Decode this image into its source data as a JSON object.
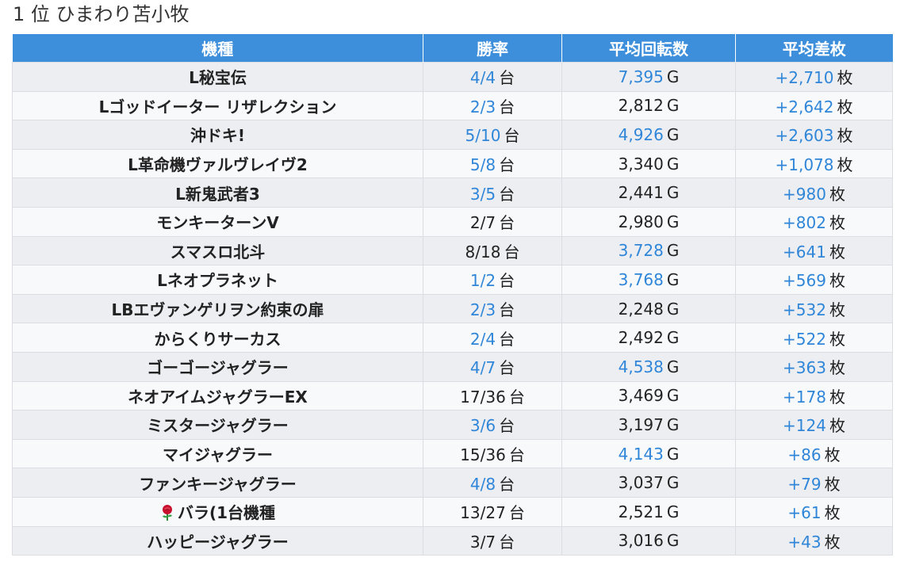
{
  "page_title": "1 位 ひまわり苫小牧",
  "colors": {
    "header_bg": "#3d8fdc",
    "highlight": "#2f86d8",
    "row_odd": "#eceef2",
    "row_even": "#f8f9fb"
  },
  "table": {
    "headers": [
      "機種",
      "勝率",
      "平均回転数",
      "平均差枚"
    ],
    "units": {
      "win_rate": "台",
      "spins": "G",
      "diff": "枚"
    },
    "rows": [
      {
        "machine": "L秘宝伝",
        "win_rate": "4/4",
        "win_rate_hl": true,
        "spins": "7,395",
        "spins_hl": true,
        "diff": "+2,710",
        "diff_hl": true
      },
      {
        "machine": "Lゴッドイーター リザレクション",
        "win_rate": "2/3",
        "win_rate_hl": true,
        "spins": "2,812",
        "spins_hl": false,
        "diff": "+2,642",
        "diff_hl": true
      },
      {
        "machine": "沖ドキ!",
        "win_rate": "5/10",
        "win_rate_hl": true,
        "spins": "4,926",
        "spins_hl": true,
        "diff": "+2,603",
        "diff_hl": true
      },
      {
        "machine": "L革命機ヴァルヴレイヴ2",
        "win_rate": "5/8",
        "win_rate_hl": true,
        "spins": "3,340",
        "spins_hl": false,
        "diff": "+1,078",
        "diff_hl": true
      },
      {
        "machine": "L新鬼武者3",
        "win_rate": "3/5",
        "win_rate_hl": true,
        "spins": "2,441",
        "spins_hl": false,
        "diff": "+980",
        "diff_hl": true
      },
      {
        "machine": "モンキーターンV",
        "win_rate": "2/7",
        "win_rate_hl": false,
        "spins": "2,980",
        "spins_hl": false,
        "diff": "+802",
        "diff_hl": true
      },
      {
        "machine": "スマスロ北斗",
        "win_rate": "8/18",
        "win_rate_hl": false,
        "spins": "3,728",
        "spins_hl": true,
        "diff": "+641",
        "diff_hl": true
      },
      {
        "machine": "Lネオプラネット",
        "win_rate": "1/2",
        "win_rate_hl": true,
        "spins": "3,768",
        "spins_hl": true,
        "diff": "+569",
        "diff_hl": true
      },
      {
        "machine": "LBエヴァンゲリヲン約束の扉",
        "win_rate": "2/3",
        "win_rate_hl": true,
        "spins": "2,248",
        "spins_hl": false,
        "diff": "+532",
        "diff_hl": true
      },
      {
        "machine": "からくりサーカス",
        "win_rate": "2/4",
        "win_rate_hl": true,
        "spins": "2,492",
        "spins_hl": false,
        "diff": "+522",
        "diff_hl": true
      },
      {
        "machine": "ゴーゴージャグラー",
        "win_rate": "4/7",
        "win_rate_hl": true,
        "spins": "4,538",
        "spins_hl": true,
        "diff": "+363",
        "diff_hl": true
      },
      {
        "machine": "ネオアイムジャグラーEX",
        "win_rate": "17/36",
        "win_rate_hl": false,
        "spins": "3,469",
        "spins_hl": false,
        "diff": "+178",
        "diff_hl": true
      },
      {
        "machine": "ミスタージャグラー",
        "win_rate": "3/6",
        "win_rate_hl": true,
        "spins": "3,197",
        "spins_hl": false,
        "diff": "+124",
        "diff_hl": true
      },
      {
        "machine": "マイジャグラー",
        "win_rate": "15/36",
        "win_rate_hl": false,
        "spins": "4,143",
        "spins_hl": true,
        "diff": "+86",
        "diff_hl": true
      },
      {
        "machine": "ファンキージャグラー",
        "win_rate": "4/8",
        "win_rate_hl": true,
        "spins": "3,037",
        "spins_hl": false,
        "diff": "+79",
        "diff_hl": true
      },
      {
        "machine": "バラ(1台機種",
        "icon": "rose-icon",
        "win_rate": "13/27",
        "win_rate_hl": false,
        "spins": "2,521",
        "spins_hl": false,
        "diff": "+61",
        "diff_hl": true
      },
      {
        "machine": "ハッピージャグラー",
        "win_rate": "3/7",
        "win_rate_hl": false,
        "spins": "3,016",
        "spins_hl": false,
        "diff": "+43",
        "diff_hl": true
      }
    ]
  }
}
